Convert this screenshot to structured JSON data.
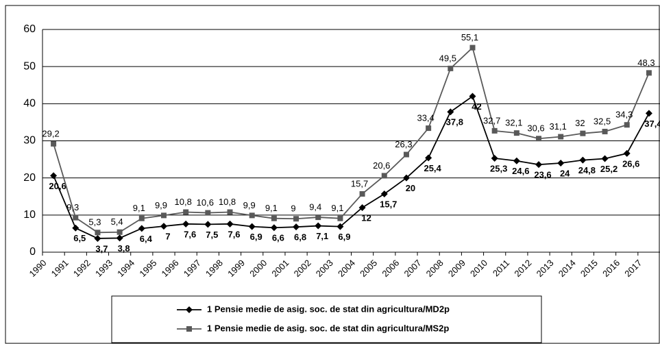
{
  "chart_data": {
    "type": "line",
    "categories": [
      "1990",
      "1991",
      "1992",
      "1993",
      "1994",
      "1995",
      "1996",
      "1997",
      "1998",
      "1999",
      "2000",
      "2001",
      "2002",
      "2003",
      "2004",
      "2005",
      "2006",
      "2007",
      "2008",
      "2009",
      "2010",
      "2011",
      "2012",
      "2013",
      "2014",
      "2015",
      "2016",
      "2017"
    ],
    "series": [
      {
        "name": "1 Pensie medie de asig. soc. de stat din agricultura/MD2p",
        "color": "#000000",
        "marker": "diamond",
        "values": [
          20.6,
          6.5,
          3.7,
          3.8,
          6.4,
          7,
          7.6,
          7.5,
          7.6,
          6.9,
          6.6,
          6.8,
          7.1,
          6.9,
          12,
          15.7,
          20,
          25.4,
          37.8,
          42,
          25.3,
          24.6,
          23.6,
          24,
          24.8,
          25.2,
          26.6,
          37.4
        ],
        "value_labels": [
          "20,6",
          "6,5",
          "3,7",
          "3,8",
          "6,4",
          "7",
          "7,6",
          "7,5",
          "7,6",
          "6,9",
          "6,6",
          "6,8",
          "7,1",
          "6,9",
          "12",
          "15,7",
          "20",
          "25,4",
          "37,8",
          "42",
          "25,3",
          "24,6",
          "23,6",
          "24",
          "24,8",
          "25,2",
          "26,6",
          "37,4"
        ]
      },
      {
        "name": "1 Pensie medie de asig. soc. de stat din agricultura/MS2p",
        "color": "#595959",
        "marker": "square",
        "values": [
          29.2,
          9.3,
          5.3,
          5.4,
          9.1,
          9.9,
          10.8,
          10.6,
          10.8,
          9.9,
          9.1,
          9,
          9.4,
          9.1,
          15.7,
          20.6,
          26.3,
          33.4,
          49.5,
          55.1,
          32.7,
          32.1,
          30.6,
          31.1,
          32,
          32.5,
          34.3,
          48.3
        ],
        "value_labels": [
          "29,2",
          "9,3",
          "5,3",
          "5,4",
          "9,1",
          "9,9",
          "10,8",
          "10,6",
          "10,8",
          "9,9",
          "9,1",
          "9",
          "9,4",
          "9,1",
          "15,7",
          "20,6",
          "26,3",
          "33,4",
          "49,5",
          "55,1",
          "32,7",
          "32,1",
          "30,6",
          "31,1",
          "32",
          "32,5",
          "34,3",
          "48,3"
        ]
      }
    ],
    "ylim": [
      0,
      60
    ],
    "yticks": [
      0,
      10,
      20,
      30,
      40,
      50,
      60
    ],
    "grid": true
  }
}
